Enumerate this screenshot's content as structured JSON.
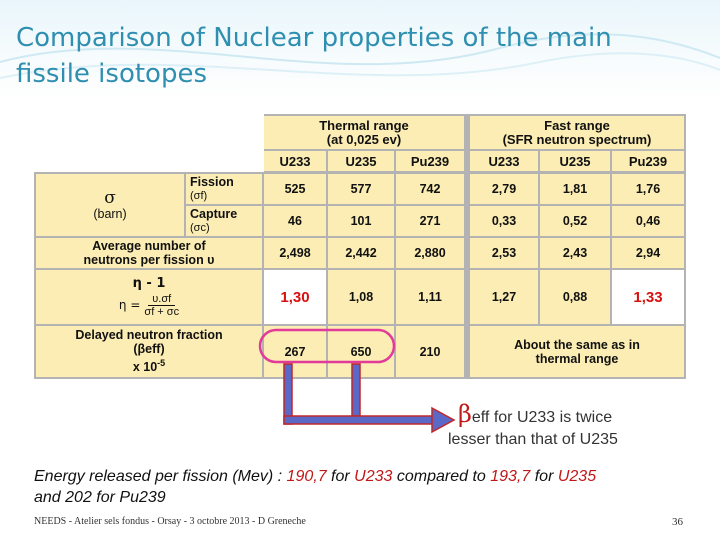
{
  "title": "Comparison of Nuclear properties of the main fissile isotopes",
  "table": {
    "thermal_header": [
      "Thermal range",
      "(at 0,025 ev)"
    ],
    "fast_header": [
      "Fast range",
      "(SFR neutron spectrum)"
    ],
    "isotopes": [
      "U233",
      "U235",
      "Pu239",
      "U233",
      "U235",
      "Pu239"
    ],
    "sigma_symbol": "σ",
    "barn_label": "(barn)",
    "fission_label": [
      "Fission",
      "(σf)"
    ],
    "capture_label": [
      "Capture",
      "(σc)"
    ],
    "nu_label": [
      "Average number of",
      "neutrons per fission υ"
    ],
    "eta_label": "η - 1",
    "eta_formula": {
      "lhs": "η =",
      "num": "υ.σf",
      "den": "σf + σc"
    },
    "beta_label": [
      "Delayed neutron fraction",
      "(βeff)",
      "x 10"
    ],
    "beta_exponent": "-5",
    "fission": [
      "525",
      "577",
      "742",
      "2,79",
      "1,81",
      "1,76"
    ],
    "capture": [
      "46",
      "101",
      "271",
      "0,33",
      "0,52",
      "0,46"
    ],
    "nu": [
      "2,498",
      "2,442",
      "2,880",
      "2,53",
      "2,43",
      "2,94"
    ],
    "eta": [
      "1,30",
      "1,08",
      "1,11",
      "1,27",
      "0,88",
      "1,33"
    ],
    "beta_thermal": [
      "267",
      "650",
      "210"
    ],
    "beta_fast": [
      "About the same as in",
      "thermal range"
    ],
    "highlight_color": "#d81010",
    "cell_fill_color": "#fbedb3",
    "border_color": "#c0292b"
  },
  "note": {
    "beta_symbol": "β",
    "text_1": "eff for U233 is twice",
    "text_2": "lesser than that of U235"
  },
  "energy": {
    "part1": "Energy released per fission  (Mev) : ",
    "v1": "190,7",
    "part2": " for ",
    "iso1": "U233",
    "part3": " compared to ",
    "v2": "193,7",
    "part4": " for ",
    "iso2": "U235",
    "line2": "and 202 for Pu239"
  },
  "footer": "NEEDS - Atelier sels fondus - Orsay - 3 octobre 2013 - D Greneche",
  "page_number": "36"
}
